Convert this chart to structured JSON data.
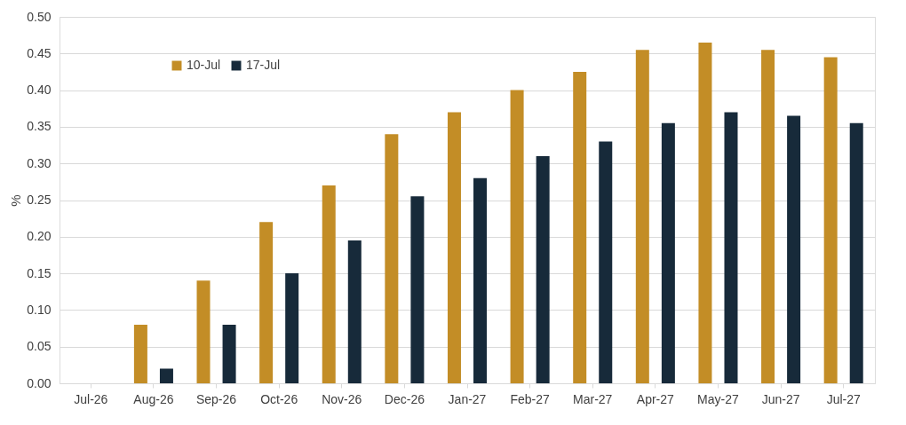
{
  "chart_data": {
    "type": "bar",
    "ylabel": "%",
    "categories": [
      "Jul-26",
      "Aug-26",
      "Sep-26",
      "Oct-26",
      "Nov-26",
      "Dec-26",
      "Jan-27",
      "Feb-27",
      "Mar-27",
      "Apr-27",
      "May-27",
      "Jun-27",
      "Jul-27"
    ],
    "series": [
      {
        "name": "10-Jul",
        "color": "#c38d26",
        "values": [
          0,
          0.08,
          0.14,
          0.22,
          0.27,
          0.34,
          0.37,
          0.4,
          0.425,
          0.455,
          0.465,
          0.455,
          0.445
        ]
      },
      {
        "name": "17-Jul",
        "color": "#172a3a",
        "values": [
          0,
          0.02,
          0.08,
          0.15,
          0.195,
          0.255,
          0.28,
          0.31,
          0.33,
          0.355,
          0.37,
          0.365,
          0.355
        ]
      }
    ],
    "ylim": [
      0,
      0.5
    ],
    "yticks": [
      {
        "value": 0,
        "label": "0.00"
      },
      {
        "value": 0.05,
        "label": "0.05"
      },
      {
        "value": 0.1,
        "label": "0.10"
      },
      {
        "value": 0.15,
        "label": "0.15"
      },
      {
        "value": 0.2,
        "label": "0.20"
      },
      {
        "value": 0.25,
        "label": "0.25"
      },
      {
        "value": 0.3,
        "label": "0.30"
      },
      {
        "value": 0.35,
        "label": "0.35"
      },
      {
        "value": 0.4,
        "label": "0.40"
      },
      {
        "value": 0.45,
        "label": "0.45"
      },
      {
        "value": 0.5,
        "label": "0.50"
      }
    ],
    "grid": "y",
    "legend": "top left"
  }
}
